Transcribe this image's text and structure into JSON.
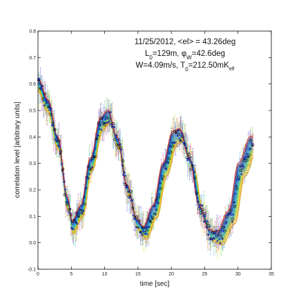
{
  "chart_data": {
    "type": "scatter",
    "xlabel": "time [sec]",
    "ylabel": "correlation level [arbitrary units]",
    "xlim": [
      0,
      35
    ],
    "ylim": [
      -0.1,
      0.8
    ],
    "xticks": [
      "0",
      "5",
      "10",
      "15",
      "20",
      "25",
      "30",
      "35"
    ],
    "yticks": [
      "-0.1",
      "0.0",
      "0.1",
      "0.2",
      "0.3",
      "0.4",
      "0.5",
      "0.6",
      "0.7",
      "0.8"
    ],
    "grid": false,
    "legend": "none",
    "annotation": {
      "line1": "11/25/2012, <el> = 43.26deg",
      "line2_a": "L",
      "line2_a_sub": "0",
      "line2_b": "=129m, ",
      "line2_phi": "φ",
      "line2_phi_sub": "W",
      "line2_c": "=42.6deg",
      "line3_a": "W=4.09m/s, T",
      "line3_a_sub": "0",
      "line3_b": "=212.50mK",
      "line3_b_sub": "eff"
    },
    "model_curve": {
      "description_values": {
        "x": [
          0,
          1.5,
          3,
          4.5,
          5.2,
          6.5,
          8,
          9.5,
          10.6,
          12,
          13.5,
          15,
          16,
          17.5,
          19,
          20.5,
          21.5,
          23,
          24.5,
          26,
          27.2,
          29,
          30.5,
          32.3
        ],
        "y": [
          0.6,
          0.52,
          0.38,
          0.15,
          0.06,
          0.12,
          0.3,
          0.45,
          0.48,
          0.38,
          0.2,
          0.07,
          0.04,
          0.12,
          0.28,
          0.4,
          0.41,
          0.3,
          0.12,
          0.03,
          0.02,
          0.1,
          0.28,
          0.38
        ]
      }
    },
    "series": [
      {
        "type": "fit_lines",
        "colors": [
          "#d4a017",
          "#f0c020",
          "#a0d030",
          "#40c090",
          "#30b0c0",
          "#2090d0",
          "#1060c0",
          "#203090",
          "#c03030"
        ]
      },
      {
        "type": "markers",
        "colors": [
          "#1a1a80",
          "#000000",
          "#2040c0"
        ]
      },
      {
        "type": "errorbars",
        "colors": [
          "#3050e0",
          "#60c0ff",
          "#60e060",
          "#e0e040",
          "#e08040",
          "#d040a0"
        ]
      }
    ]
  }
}
